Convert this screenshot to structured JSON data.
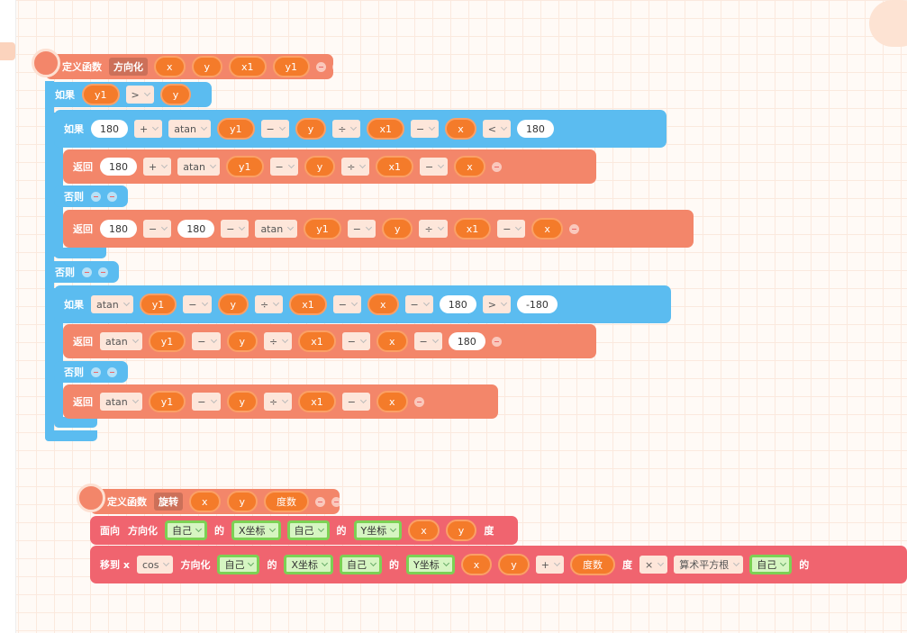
{
  "blocks": [
    {
      "tokens": [
        "定义函数",
        "方向化",
        "x",
        "y",
        "x1",
        "y1"
      ]
    },
    {
      "tokens": [
        "如果",
        "y1",
        ">",
        "y"
      ]
    },
    {
      "tokens": [
        "如果",
        "180",
        "+",
        "atan",
        "y1",
        "−",
        "y",
        "÷",
        "x1",
        "−",
        "x",
        "<",
        "180"
      ]
    },
    {
      "tokens": [
        "返回",
        "180",
        "+",
        "atan",
        "y1",
        "−",
        "y",
        "÷",
        "x1",
        "−",
        "x"
      ]
    },
    {
      "tokens": [
        "否则"
      ]
    },
    {
      "tokens": [
        "返回",
        "180",
        "−",
        "180",
        "−",
        "atan",
        "y1",
        "−",
        "y",
        "÷",
        "x1",
        "−",
        "x"
      ]
    },
    {
      "tokens": [
        "否则"
      ]
    },
    {
      "tokens": [
        "如果",
        "atan",
        "y1",
        "−",
        "y",
        "÷",
        "x1",
        "−",
        "x",
        "−",
        "180",
        ">",
        "-180"
      ]
    },
    {
      "tokens": [
        "返回",
        "atan",
        "y1",
        "−",
        "y",
        "÷",
        "x1",
        "−",
        "x",
        "−",
        "180"
      ]
    },
    {
      "tokens": [
        "否则"
      ]
    },
    {
      "tokens": [
        "返回",
        "atan",
        "y1",
        "−",
        "y",
        "÷",
        "x1",
        "−",
        "x"
      ]
    },
    {
      "tokens": [
        "定义函数",
        "旋转",
        "x",
        "y",
        "度数"
      ]
    },
    {
      "tokens": [
        "面向",
        "方向化",
        "自己",
        "的",
        "X坐标",
        "自己",
        "的",
        "Y坐标",
        "x",
        "y",
        "度"
      ]
    },
    {
      "tokens": [
        "移到 x",
        "cos",
        "方向化",
        "自己",
        "的",
        "X坐标",
        "自己",
        "的",
        "Y坐标",
        "x",
        "y",
        "+",
        "度数",
        "度",
        "×",
        "算术平方根",
        "自己",
        "的"
      ]
    }
  ]
}
